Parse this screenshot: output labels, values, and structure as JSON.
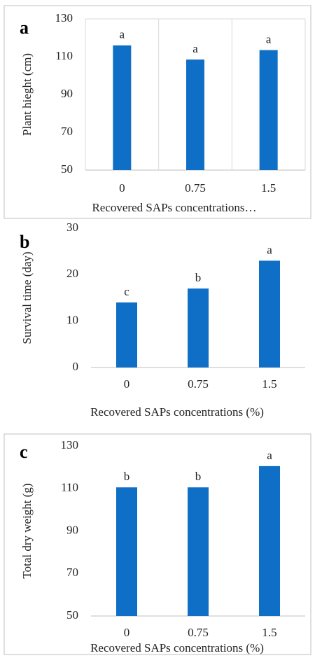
{
  "chart_data": [
    {
      "type": "bar",
      "panel_label": "a",
      "y_label": "Plant hieght (cm)",
      "x_label": "Recovered SAPs concentrations…",
      "categories": [
        "0",
        "0.75",
        "1.5"
      ],
      "values": [
        116,
        108.5,
        113.5
      ],
      "significance_labels": [
        "a",
        "a",
        "a"
      ],
      "color": "#0f6fc6",
      "ylim": [
        50,
        130
      ],
      "yticks": [
        50,
        70,
        90,
        110,
        130
      ],
      "vertical_grid": true,
      "border": true
    },
    {
      "type": "bar",
      "panel_label": "b",
      "y_label": "Survival time (day)",
      "x_label": "Recovered SAPs concentrations (%)",
      "categories": [
        "0",
        "0.75",
        "1.5"
      ],
      "values": [
        14,
        17,
        23
      ],
      "significance_labels": [
        "c",
        "b",
        "a"
      ],
      "color": "#0f6fc6",
      "ylim": [
        0,
        30
      ],
      "yticks": [
        0,
        10,
        20,
        30
      ],
      "vertical_grid": false,
      "border": false
    },
    {
      "type": "bar",
      "panel_label": "c",
      "y_label": "Total dry weight (g)",
      "x_label": "Recovered SAPs concentrations (%)",
      "categories": [
        "0",
        "0.75",
        "1.5"
      ],
      "values": [
        110.5,
        110.5,
        120.5
      ],
      "significance_labels": [
        "b",
        "b",
        "a"
      ],
      "color": "#0f6fc6",
      "ylim": [
        50,
        130
      ],
      "yticks": [
        50,
        70,
        90,
        110,
        130
      ],
      "vertical_grid": false,
      "border": true
    }
  ]
}
